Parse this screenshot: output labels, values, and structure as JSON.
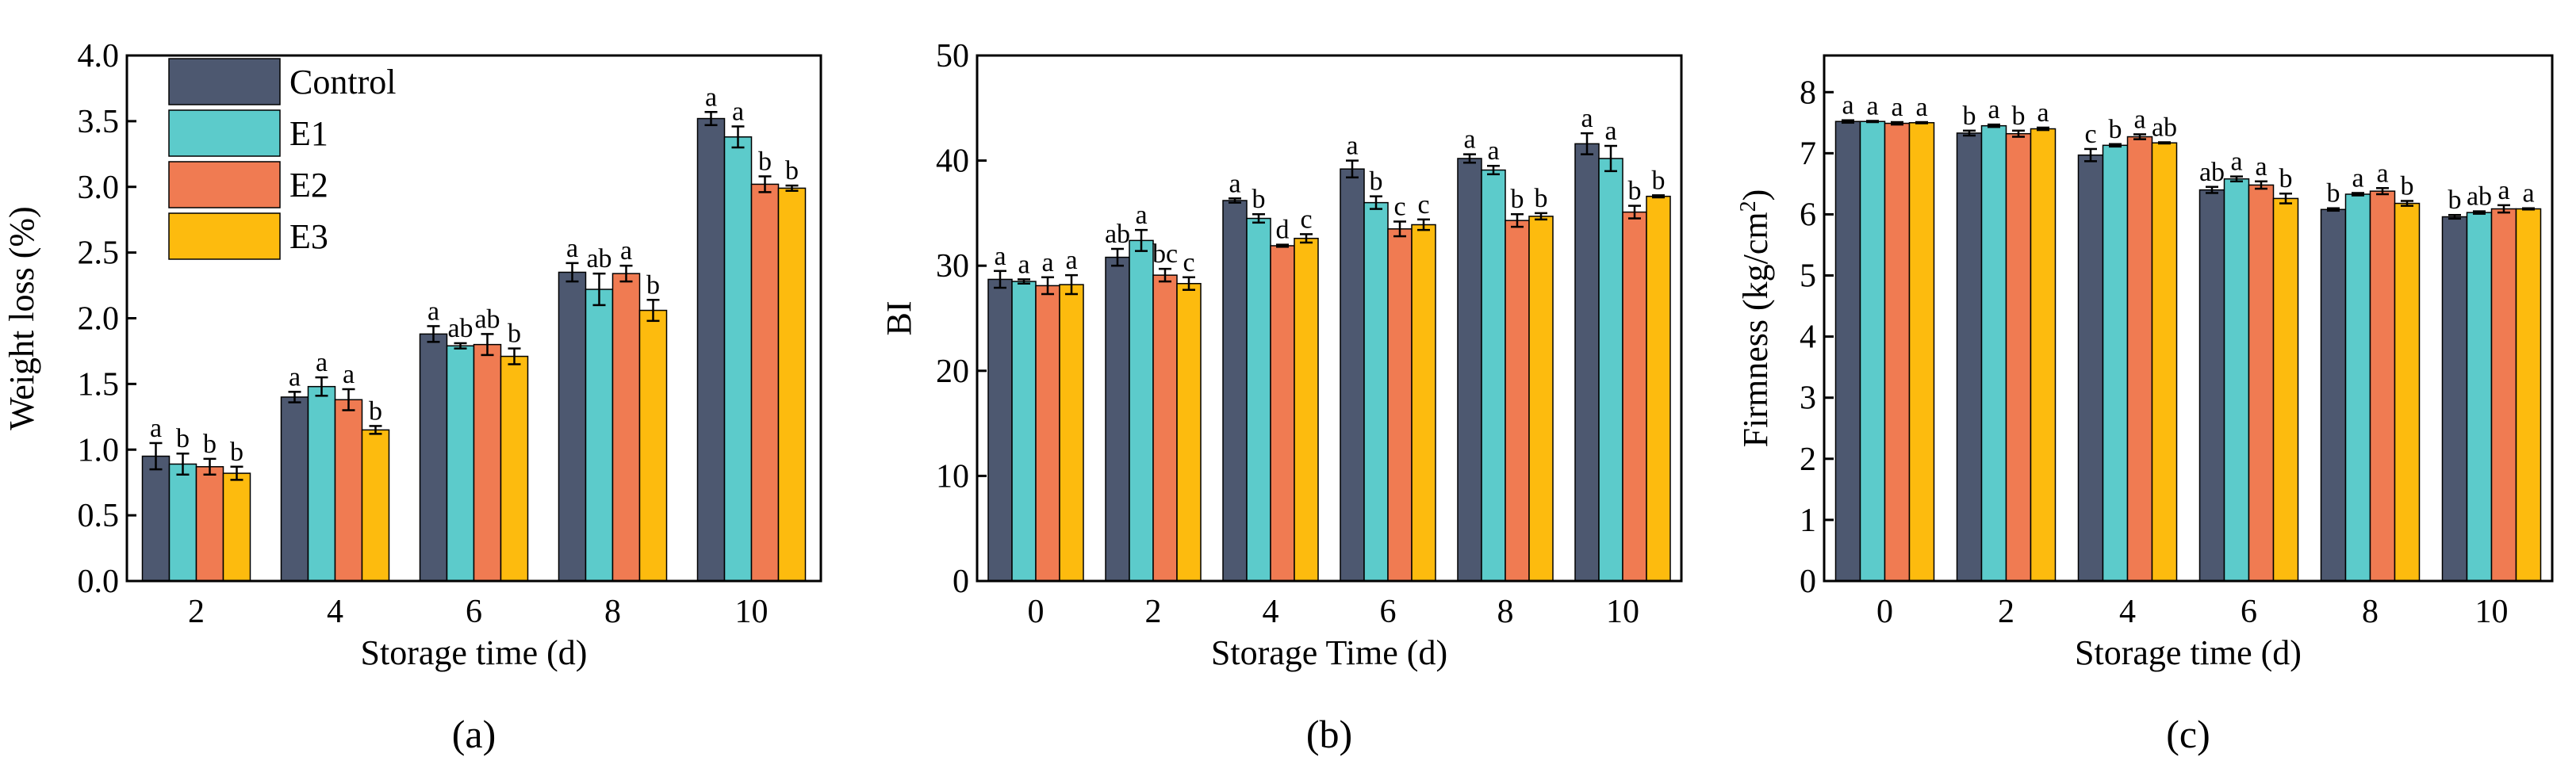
{
  "colors": {
    "Control": "#4d5870",
    "E1": "#5ccbcb",
    "E2": "#f07b52",
    "E3": "#fdbb0e",
    "axis": "#000000"
  },
  "legend": [
    "Control",
    "E1",
    "E2",
    "E3"
  ],
  "chart_data": [
    {
      "type": "bar",
      "panel_label": "(a)",
      "xlabel": "Storage time (d)",
      "ylabel": "Weight loss (%)",
      "ylim": [
        0,
        4.0
      ],
      "y_ticks": [
        "0.0",
        "0.5",
        "1.0",
        "1.5",
        "2.0",
        "2.5",
        "3.0",
        "3.5",
        "4.0"
      ],
      "categories": [
        "2",
        "4",
        "6",
        "8",
        "10"
      ],
      "legend_position": "top-left",
      "series": [
        {
          "name": "Control",
          "values": [
            0.95,
            1.4,
            1.88,
            2.35,
            3.52
          ],
          "errors": [
            0.1,
            0.04,
            0.06,
            0.07,
            0.05
          ],
          "letters": [
            "a",
            "a",
            "a",
            "a",
            "a"
          ]
        },
        {
          "name": "E1",
          "values": [
            0.89,
            1.48,
            1.79,
            2.22,
            3.38
          ],
          "errors": [
            0.08,
            0.07,
            0.02,
            0.12,
            0.08
          ],
          "letters": [
            "b",
            "a",
            "ab",
            "ab",
            "a"
          ]
        },
        {
          "name": "E2",
          "values": [
            0.87,
            1.38,
            1.8,
            2.34,
            3.02
          ],
          "errors": [
            0.06,
            0.08,
            0.08,
            0.06,
            0.06
          ],
          "letters": [
            "b",
            "a",
            "ab",
            "a",
            "b"
          ]
        },
        {
          "name": "E3",
          "values": [
            0.82,
            1.15,
            1.71,
            2.06,
            2.99
          ],
          "errors": [
            0.05,
            0.03,
            0.06,
            0.08,
            0.02
          ],
          "letters": [
            "b",
            "b",
            "b",
            "b",
            "b"
          ]
        }
      ]
    },
    {
      "type": "bar",
      "panel_label": "(b)",
      "xlabel": "Storage Time (d)",
      "ylabel": "BI",
      "ylim": [
        0,
        50
      ],
      "y_ticks": [
        "0",
        "10",
        "20",
        "30",
        "40",
        "50"
      ],
      "categories": [
        "0",
        "2",
        "4",
        "6",
        "8",
        "10"
      ],
      "series": [
        {
          "name": "Control",
          "values": [
            28.7,
            30.8,
            36.2,
            39.2,
            40.2,
            41.6
          ],
          "errors": [
            0.8,
            0.8,
            0.2,
            0.8,
            0.4,
            1.0
          ],
          "letters": [
            "a",
            "ab",
            "a",
            "a",
            "a",
            "a"
          ]
        },
        {
          "name": "E1",
          "values": [
            28.5,
            32.4,
            34.5,
            36.0,
            39.1,
            40.2
          ],
          "errors": [
            0.2,
            1.0,
            0.4,
            0.6,
            0.4,
            1.2
          ],
          "letters": [
            "a",
            "a",
            "b",
            "b",
            "a",
            "a"
          ]
        },
        {
          "name": "E2",
          "values": [
            28.1,
            29.1,
            31.9,
            33.5,
            34.3,
            35.1
          ],
          "errors": [
            0.8,
            0.6,
            0.1,
            0.7,
            0.6,
            0.6
          ],
          "letters": [
            "a",
            "bc",
            "d",
            "c",
            "b",
            "b"
          ]
        },
        {
          "name": "E3",
          "values": [
            28.2,
            28.3,
            32.6,
            33.9,
            34.7,
            36.6
          ],
          "errors": [
            0.9,
            0.6,
            0.4,
            0.5,
            0.3,
            0.1
          ],
          "letters": [
            "a",
            "c",
            "c",
            "c",
            "b",
            "b"
          ]
        }
      ]
    },
    {
      "type": "bar",
      "panel_label": "(c)",
      "xlabel": "Storage time (d)",
      "ylabel_prefix": "Firmness (kg/cm",
      "ylabel_sup": "2",
      "ylabel_suffix": ")",
      "ylim": [
        0,
        8.6
      ],
      "y_ticks": [
        "0",
        "1",
        "2",
        "3",
        "4",
        "5",
        "6",
        "7",
        "8"
      ],
      "categories": [
        "0",
        "2",
        "4",
        "6",
        "8",
        "10"
      ],
      "series": [
        {
          "name": "Control",
          "values": [
            7.52,
            7.33,
            6.97,
            6.4,
            6.08,
            5.96
          ],
          "errors": [
            0.02,
            0.04,
            0.1,
            0.05,
            0.02,
            0.03
          ],
          "letters": [
            "a",
            "b",
            "c",
            "ab",
            "b",
            "b"
          ]
        },
        {
          "name": "E1",
          "values": [
            7.52,
            7.45,
            7.13,
            6.58,
            6.33,
            6.03
          ],
          "errors": [
            0.01,
            0.02,
            0.02,
            0.04,
            0.02,
            0.02
          ],
          "letters": [
            "a",
            "a",
            "b",
            "a",
            "a",
            "ab"
          ]
        },
        {
          "name": "E2",
          "values": [
            7.49,
            7.32,
            7.27,
            6.48,
            6.38,
            6.09
          ],
          "errors": [
            0.02,
            0.05,
            0.04,
            0.06,
            0.05,
            0.06
          ],
          "letters": [
            "a",
            "b",
            "a",
            "a",
            "a",
            "a"
          ]
        },
        {
          "name": "E3",
          "values": [
            7.5,
            7.4,
            7.17,
            6.26,
            6.18,
            6.09
          ],
          "errors": [
            0.01,
            0.02,
            0.01,
            0.08,
            0.04,
            0.01
          ],
          "letters": [
            "a",
            "a",
            "ab",
            "b",
            "b",
            "a"
          ]
        }
      ]
    }
  ]
}
